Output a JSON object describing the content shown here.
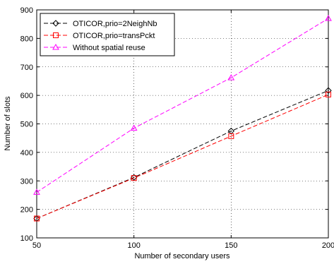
{
  "chart_data": {
    "type": "line",
    "title": "",
    "xlabel": "Number of secondary users",
    "ylabel": "Number of slots",
    "xlim": [
      50,
      200
    ],
    "ylim": [
      100,
      900
    ],
    "xticks": [
      "50",
      "100",
      "150",
      "200"
    ],
    "yticks": [
      "100",
      "200",
      "300",
      "400",
      "500",
      "600",
      "700",
      "800",
      "900"
    ],
    "grid": true,
    "legend_position": "top-left",
    "x": [
      50,
      100,
      150,
      200
    ],
    "series": [
      {
        "name": "OTICOR,prio=2NeighNb",
        "values": [
          168,
          312,
          475,
          617
        ],
        "color": "#000000",
        "marker": "diamond",
        "line": "dashed"
      },
      {
        "name": "OTICOR,prio=transPckt",
        "values": [
          168,
          310,
          457,
          603
        ],
        "color": "#ff0000",
        "marker": "square",
        "line": "dashed"
      },
      {
        "name": "Without spatial reuse",
        "values": [
          260,
          485,
          662,
          870
        ],
        "color": "#ff00ff",
        "marker": "triangle",
        "line": "dashed"
      }
    ]
  }
}
